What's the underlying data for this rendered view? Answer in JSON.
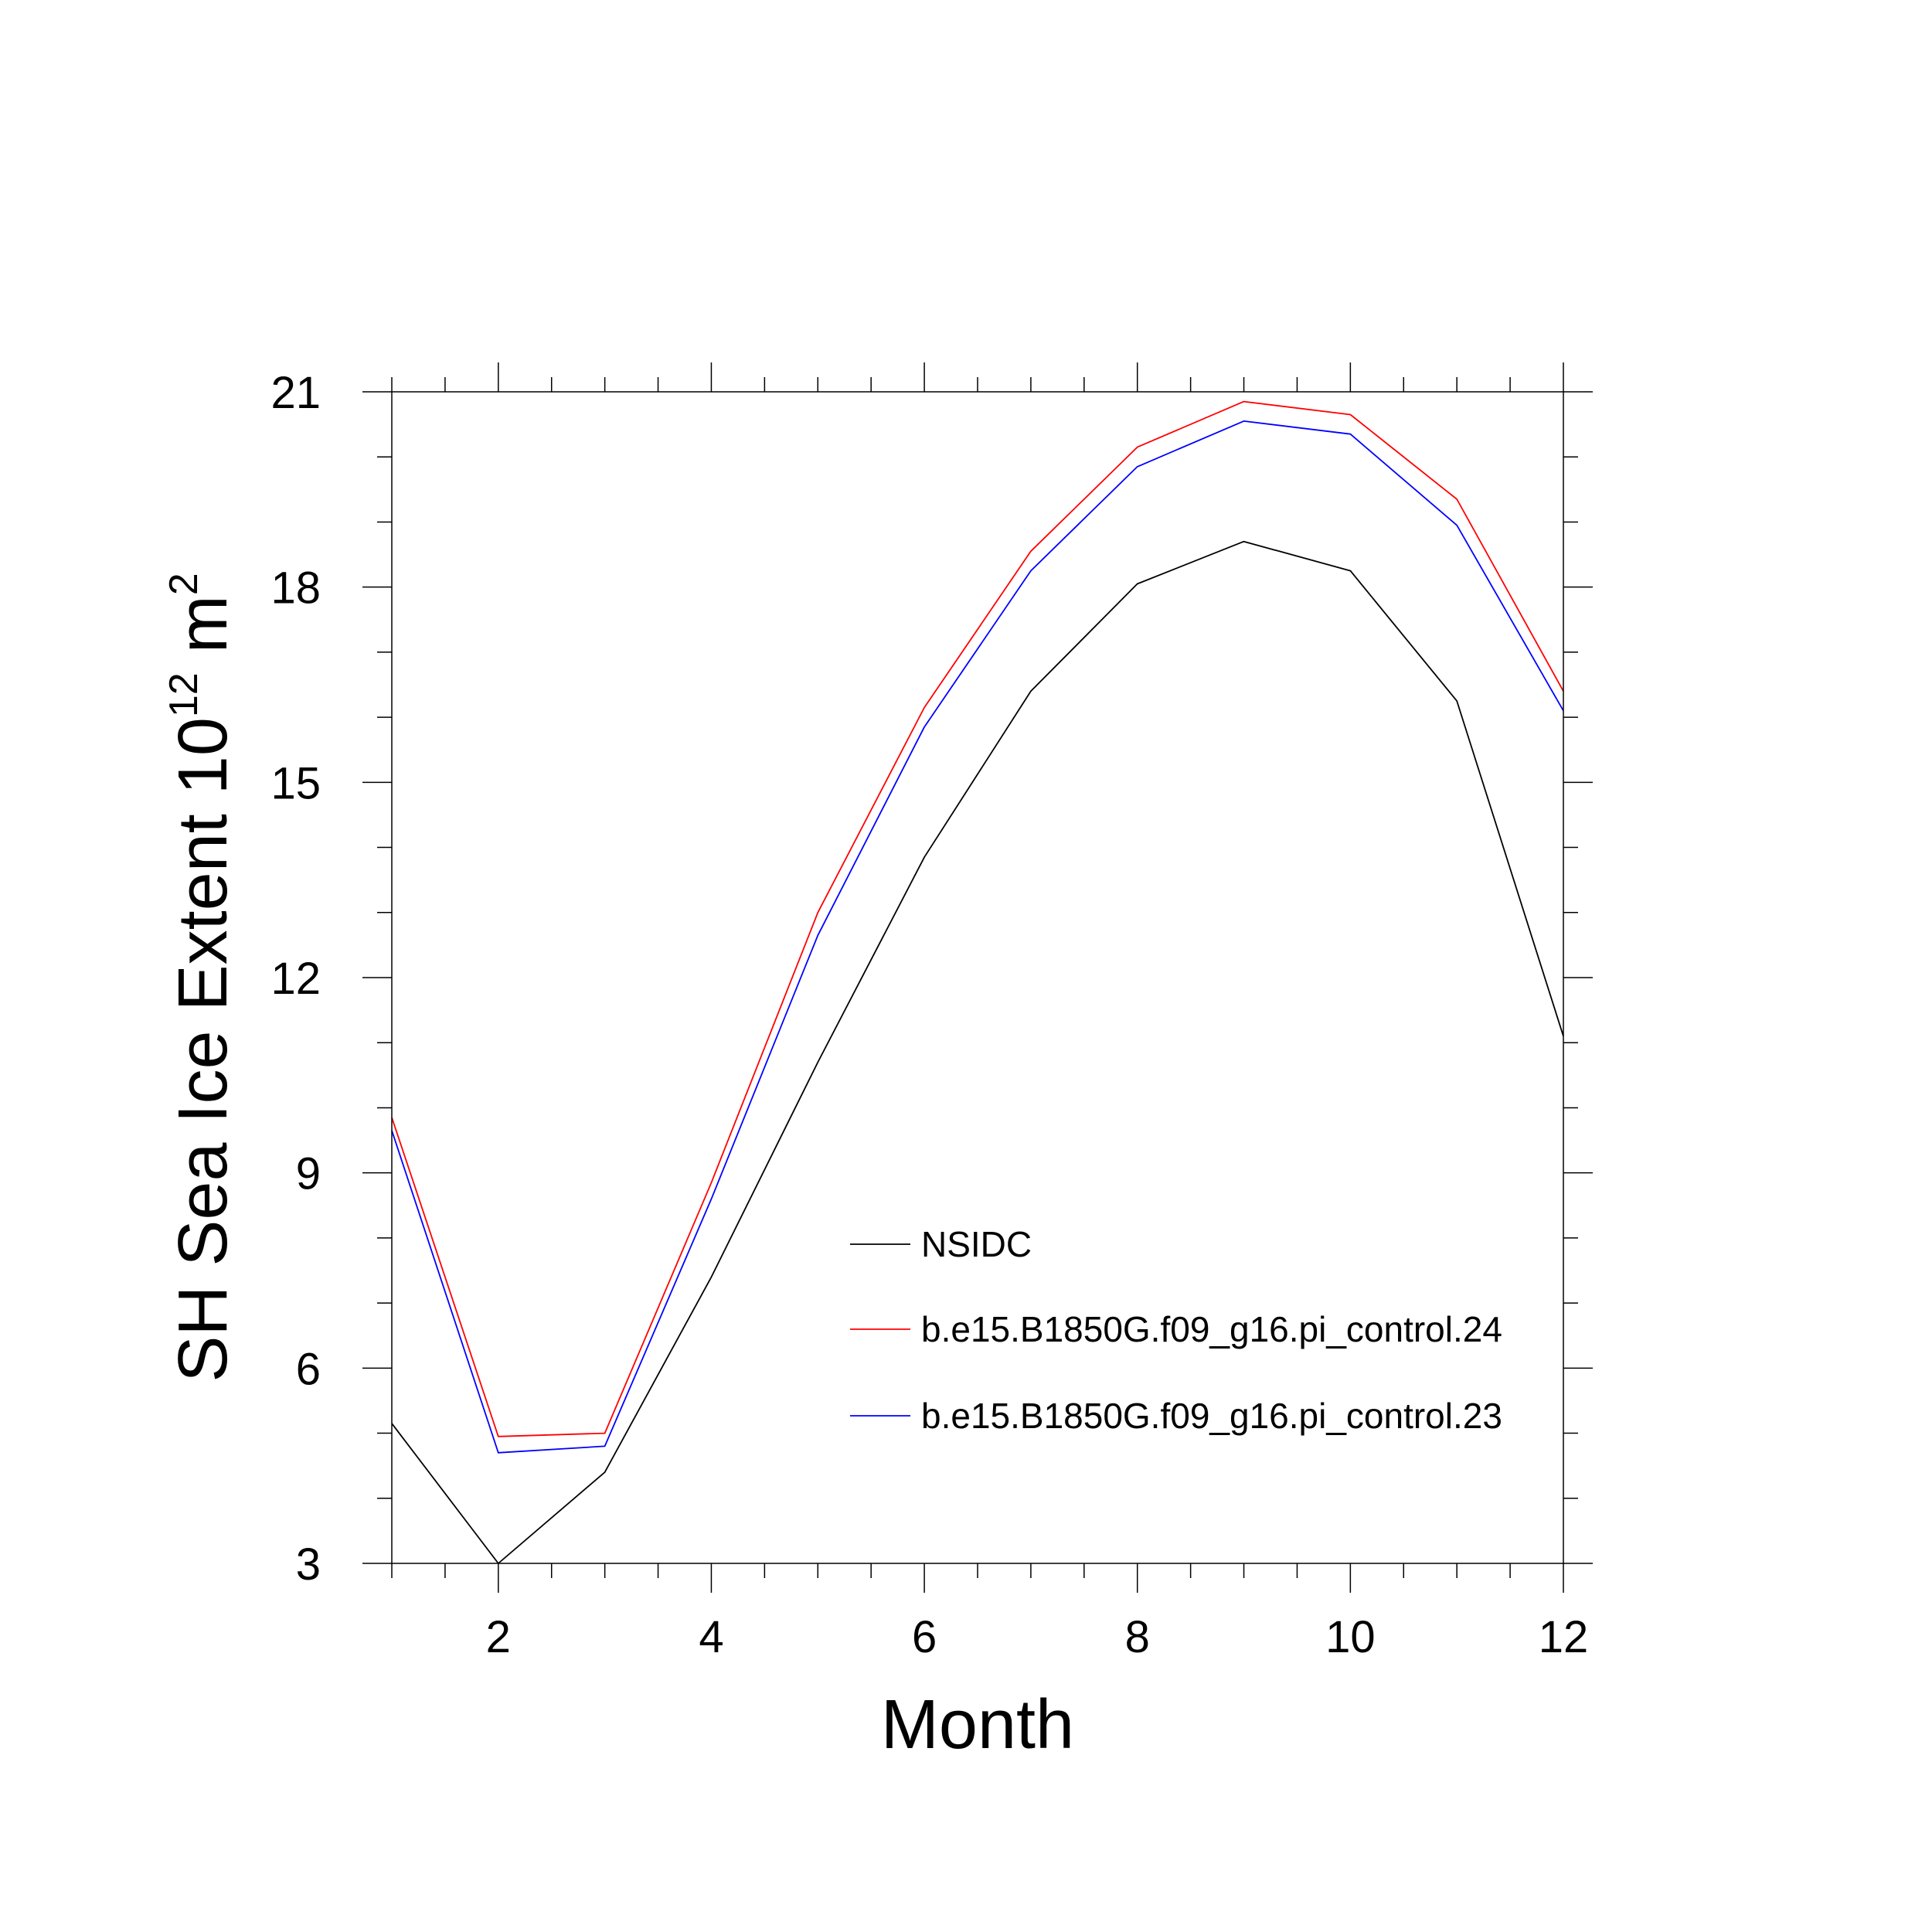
{
  "chart_data": {
    "type": "line",
    "xlabel": "Month",
    "ylabel": {
      "prefix": "SH Sea Ice Extent 10",
      "exponent": "12",
      "unit": " m",
      "unit_exponent": "2"
    },
    "xlim": [
      1,
      12
    ],
    "ylim": [
      3,
      21
    ],
    "x_ticks": [
      2,
      4,
      6,
      8,
      10,
      12
    ],
    "x_tick_labels": [
      "2",
      "4",
      "6",
      "8",
      "10",
      "12"
    ],
    "y_ticks": [
      3,
      6,
      9,
      12,
      15,
      18,
      21
    ],
    "y_tick_labels": [
      "3",
      "6",
      "9",
      "12",
      "15",
      "18",
      "21"
    ],
    "grid": false,
    "legend_position": "lower-right",
    "x": [
      1,
      2,
      3,
      4,
      5,
      6,
      7,
      8,
      9,
      10,
      11,
      12
    ],
    "series": [
      {
        "name": "NSIDC",
        "color": "#000000",
        "values": [
          5.15,
          3.0,
          4.4,
          7.4,
          10.7,
          13.85,
          16.4,
          18.05,
          18.7,
          18.25,
          16.25,
          11.1
        ]
      },
      {
        "name": "b.e15.B1850G.f09_g16.pi_control.24",
        "color": "#ff0000",
        "values": [
          9.85,
          4.95,
          5.0,
          8.85,
          13.0,
          16.15,
          18.55,
          20.15,
          20.85,
          20.65,
          19.35,
          16.4
        ]
      },
      {
        "name": "b.e15.B1850G.f09_g16.pi_control.23",
        "color": "#0000ff",
        "values": [
          9.65,
          4.7,
          4.8,
          8.6,
          12.65,
          15.85,
          18.25,
          19.85,
          20.55,
          20.35,
          18.95,
          16.1
        ]
      }
    ]
  }
}
